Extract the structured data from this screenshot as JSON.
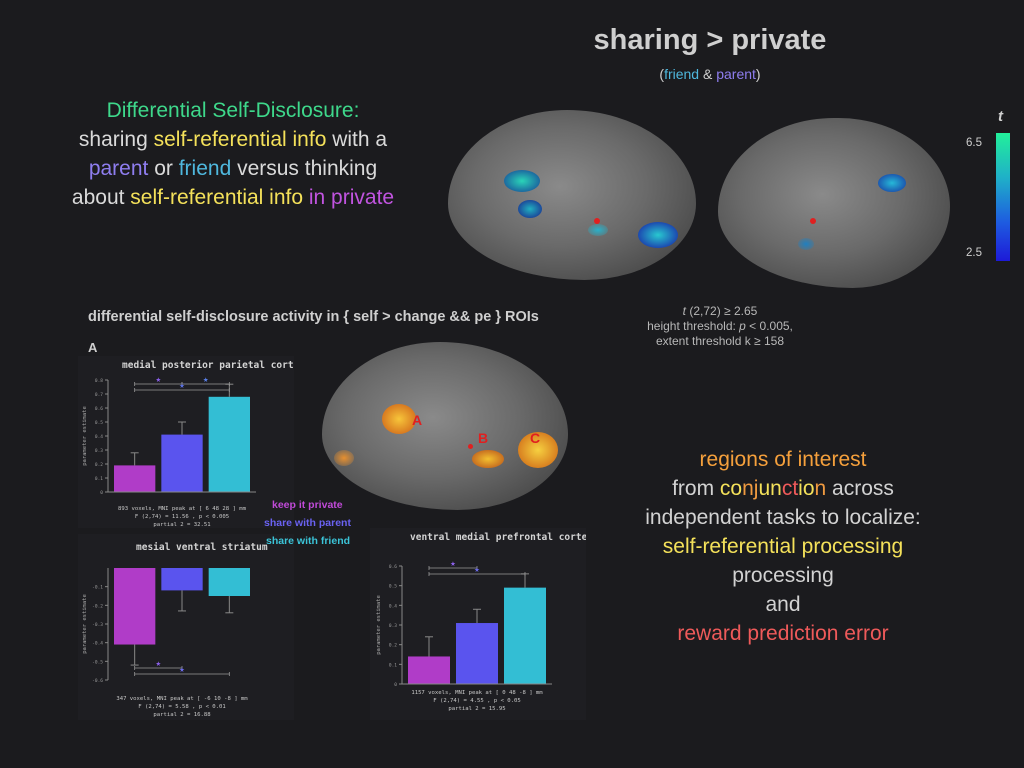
{
  "header": {
    "title": "sharing > private",
    "subtitle_open": "(",
    "subtitle_friend": "friend",
    "subtitle_amp": " & ",
    "subtitle_parent": "parent",
    "subtitle_close": ")"
  },
  "description": {
    "heading": "Differential Self-Disclosure:",
    "l1a": "sharing ",
    "l1b": "self-referential info",
    "l1c": " with a",
    "l2a": "parent",
    "l2b": " or ",
    "l2c": "friend",
    "l2d": " versus thinking",
    "l3a": "about ",
    "l3b": "self-referential info",
    "l3c": " in private"
  },
  "colorbar": {
    "label": "t",
    "max": "6.5",
    "min": "2.5"
  },
  "threshold": {
    "line1_var": "t",
    "line1_rest": " (2,72) ≥ 2.65",
    "line2_a": "height threshold: ",
    "line2_p": "p",
    "line2_b": " < 0.005,",
    "line3": "extent threshold k ≥ 158"
  },
  "figure_title": "differential self-disclosure activity in { self > change && pe } ROIs",
  "roi_labels": {
    "a": "A",
    "b": "B",
    "c": "C"
  },
  "legend": {
    "private": "keep it private",
    "parent": "share with parent",
    "friend": "share with friend",
    "colors": {
      "private": "#b03cc8",
      "parent": "#5a54ee",
      "friend": "#33bed4"
    }
  },
  "regions": {
    "l1": "regions of interest",
    "l2a": "from ",
    "l2b": "co",
    "l2c": "nj",
    "l2d": "un",
    "l2e": "ct",
    "l2f": "io",
    "l2g": "n",
    "l2h": " across",
    "l3": "independent tasks to localize:",
    "l4": "self-referential processing",
    "l5": "processing",
    "l6": "and",
    "l7": "reward prediction error"
  },
  "chart_data": [
    {
      "type": "bar",
      "panel": "A",
      "title": "medial posterior parietal cortex",
      "ylabel": "parameter estimate",
      "categories": [
        "keep it private",
        "share with parent",
        "share with friend"
      ],
      "values": [
        0.19,
        0.41,
        0.68
      ],
      "errors": [
        0.09,
        0.09,
        0.09
      ],
      "ylim": [
        0,
        0.8
      ],
      "yticks": [
        "0",
        "0.1",
        "0.2",
        "0.3",
        "0.4",
        "0.5",
        "0.6",
        "0.7",
        "0.8"
      ],
      "stats": [
        "893 voxels, MNI peak at [  6 48 28 ] mm",
        "F (2,74) = 11.56 , p < 0.005",
        "partial   2 = 32.51"
      ]
    },
    {
      "type": "bar",
      "panel": "B",
      "title": "mesial ventral striatum",
      "ylabel": "parameter estimate",
      "categories": [
        "keep it private",
        "share with parent",
        "share with friend"
      ],
      "values": [
        -0.41,
        -0.12,
        -0.15
      ],
      "errors": [
        0.11,
        0.11,
        0.09
      ],
      "ylim": [
        -0.6,
        0
      ],
      "yticks": [
        "-0.6",
        "-0.5",
        "-0.4",
        "-0.3",
        "-0.2",
        "-0.1"
      ],
      "stats": [
        "347 voxels, MNI peak at [ -6 10 -8 ] mm",
        "F (2,74) = 5.58 , p < 0.01",
        "partial   2 = 16.88"
      ]
    },
    {
      "type": "bar",
      "panel": "C",
      "title": "ventral medial prefrontal cortex",
      "ylabel": "parameter estimate",
      "categories": [
        "keep it private",
        "share with parent",
        "share with friend"
      ],
      "values": [
        0.14,
        0.31,
        0.49
      ],
      "errors": [
        0.1,
        0.07,
        0.07
      ],
      "ylim": [
        0,
        0.6
      ],
      "yticks": [
        "0",
        "0.1",
        "0.2",
        "0.3",
        "0.4",
        "0.5",
        "0.6"
      ],
      "stats": [
        "1157 voxels, MNI peak at [  0 48 -8 ] mm",
        "F (2,74) = 4.55 , p < 0.05",
        "partial   2 = 15.95"
      ]
    }
  ]
}
